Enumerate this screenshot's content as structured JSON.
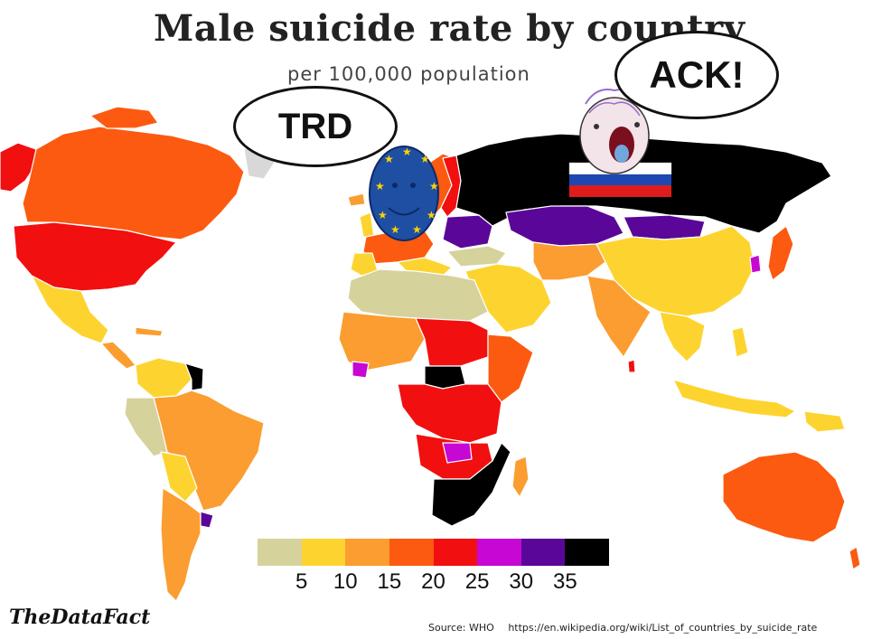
{
  "header": {
    "title": "Male suicide rate by country",
    "subtitle": "per 100,000 population"
  },
  "bubbles": {
    "trd": "TRD",
    "ack": "ACK!"
  },
  "legend": {
    "colors": [
      "#d6d29c",
      "#fdd42f",
      "#fb9d30",
      "#fc5a10",
      "#f20f0f",
      "#c707d3",
      "#5a0799",
      "#000000"
    ],
    "ticks": [
      "5",
      "10",
      "15",
      "20",
      "25",
      "30",
      "35"
    ]
  },
  "footer": {
    "brand": "TheDataFact",
    "source_label": "Source:",
    "source_value": "WHO",
    "url": "https://en.wikipedia.org/wiki/List_of_countries_by_suicide_rate"
  },
  "map_colors": {
    "ocean": "#ffffff",
    "no_data": "#d8d8d8",
    "border": "#ffffff"
  },
  "characters": {
    "eu_flag_blue": "#1f4fa3",
    "eu_star_gold": "#ffd400",
    "russia_flag": [
      "#ffffff",
      "#1d47b3",
      "#e01b1b"
    ]
  }
}
